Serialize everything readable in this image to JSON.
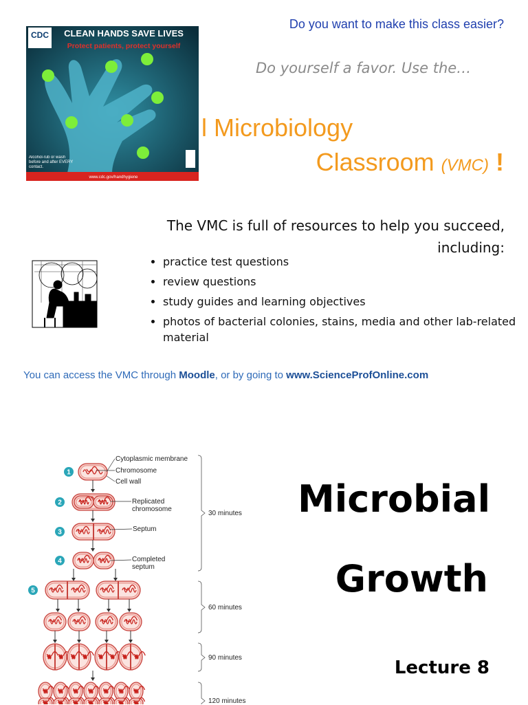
{
  "slide1": {
    "question": "Do you want to make this class easier?",
    "tagline": "Do yourself a favor. Use the…",
    "title": {
      "line1": "l Microbiology",
      "line2": "Classroom",
      "abbr": "(VMC)",
      "mark": "!"
    },
    "poster": {
      "logo": "CDC",
      "headline": "CLEAN HANDS SAVE LIVES",
      "subhead": "Protect patients, protect yourself",
      "note": "Alcohol-rub or wash before and after EVERY contact.",
      "url": "www.cdc.gov/handhygiene"
    },
    "intro": "The VMC is full of resources to help you succeed, including:",
    "bullets": [
      "practice test questions",
      "review questions",
      "study guides and learning objectives",
      "photos of bacterial colonies, stains, media and other lab-related material"
    ],
    "access": {
      "before": "You can access the VMC through ",
      "link1": "Moodle",
      "middle": ", or by going to ",
      "link2": "www.ScienceProfOnline.com"
    }
  },
  "slide2": {
    "diagram": {
      "labels": [
        "Cytoplasmic membrane",
        "Chromosome",
        "Cell wall",
        "Replicated chromosome",
        "Septum",
        "Completed septum"
      ],
      "steps": [
        "1",
        "2",
        "3",
        "4",
        "5"
      ],
      "times": [
        "30 minutes",
        "60 minutes",
        "90 minutes",
        "120 minutes"
      ]
    },
    "title": [
      "Microbial",
      "Growth"
    ],
    "lecture": "Lecture 8"
  }
}
